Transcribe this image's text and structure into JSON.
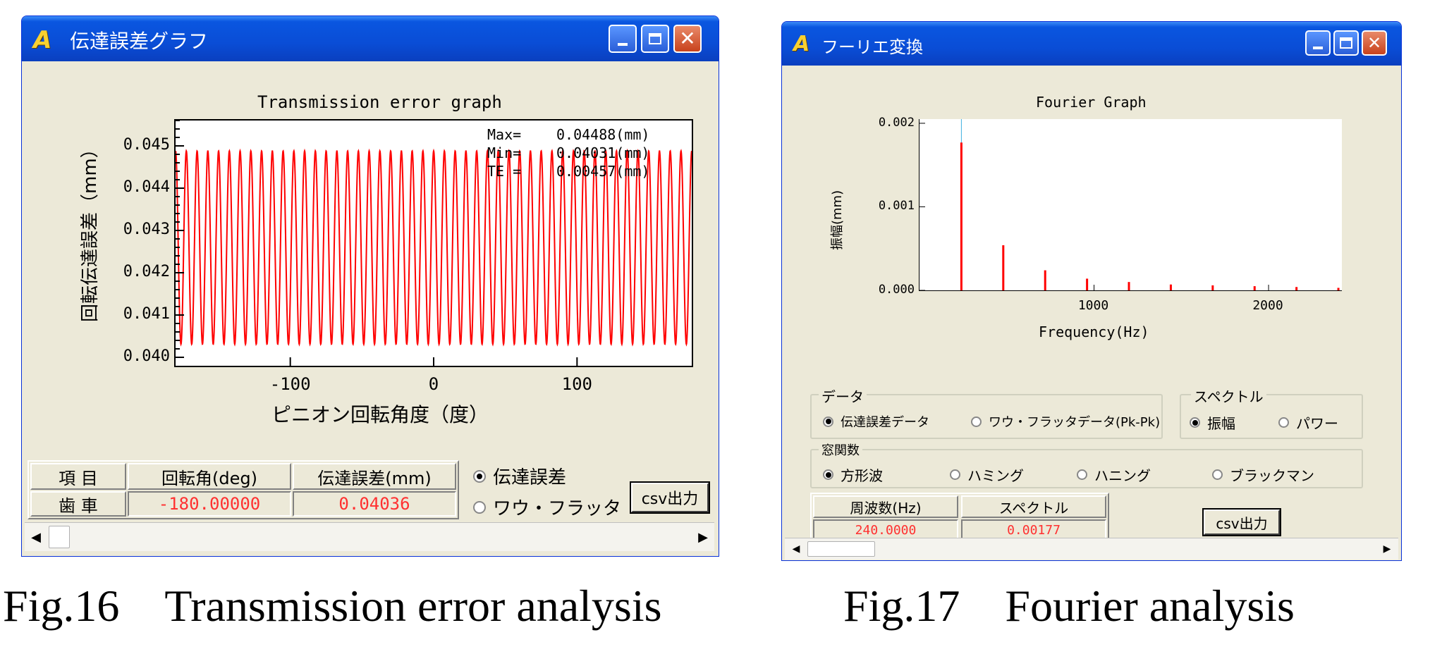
{
  "window1": {
    "title": "伝達誤差グラフ",
    "logo": "A",
    "chart_data": {
      "type": "line",
      "title": "Transmission error graph",
      "xlabel": "ピニオン回転角度（度）",
      "ylabel": "回転伝達誤差（mm）",
      "xlim": [
        -180,
        180
      ],
      "ylim": [
        0.0398,
        0.0456
      ],
      "xticks": [
        -100,
        0,
        100
      ],
      "xtick_labels": [
        "-100",
        "0",
        "100"
      ],
      "yticks": [
        0.04,
        0.041,
        0.042,
        0.043,
        0.044,
        0.045
      ],
      "ytick_labels": [
        "0.040",
        "0.041",
        "0.042",
        "0.043",
        "0.044",
        "0.045"
      ],
      "series": [
        {
          "color": "#ff0000",
          "periods": 48,
          "max": 0.04488,
          "min": 0.04031
        }
      ],
      "stats": [
        {
          "label": "Max=",
          "value": "0.04488(mm)"
        },
        {
          "label": "Min=",
          "value": "0.04031(mm)"
        },
        {
          "label": "TE =",
          "value": "0.00457(mm)"
        }
      ]
    },
    "table": {
      "headers": [
        "項 目",
        "回転角(deg)",
        "伝達誤差(mm)"
      ],
      "row_label": "歯 車",
      "values": [
        "-180.00000",
        "0.04036"
      ]
    },
    "radios": [
      {
        "label": "伝達誤差",
        "checked": true
      },
      {
        "label": "ワウ・フラッタ",
        "checked": false
      }
    ],
    "csv_button": "csv出力"
  },
  "window2": {
    "title": "フーリエ変換",
    "logo": "A",
    "chart_data": {
      "type": "bar",
      "title": "Fourier Graph",
      "xlabel": "Frequency(Hz)",
      "ylabel": "振幅(mm)",
      "xlim": [
        0,
        2420
      ],
      "ylim": [
        0,
        0.00205
      ],
      "xticks": [
        1000,
        2000
      ],
      "xtick_labels": [
        "1000",
        "2000"
      ],
      "yticks": [
        0,
        0.001,
        0.002
      ],
      "ytick_labels": [
        "0.000",
        "0.001",
        "0.002"
      ],
      "marker_x": 240,
      "x": [
        240,
        480,
        720,
        960,
        1200,
        1440,
        1680,
        1920,
        2160,
        2400
      ],
      "values": [
        0.00177,
        0.00054,
        0.00024,
        0.00014,
        0.0001,
        7e-05,
        6e-05,
        5e-05,
        4e-05,
        3e-05
      ]
    },
    "data_group": {
      "label": "データ",
      "options": [
        {
          "label": "伝達誤差データ",
          "checked": true
        },
        {
          "label": "ワウ・フラッタデータ(Pk-Pk)",
          "checked": false
        }
      ]
    },
    "spectrum_group": {
      "label": "スペクトル",
      "options": [
        {
          "label": "振幅",
          "checked": true
        },
        {
          "label": "パワー",
          "checked": false
        }
      ]
    },
    "window_group": {
      "label": "窓関数",
      "options": [
        {
          "label": "方形波",
          "checked": true
        },
        {
          "label": "ハミング",
          "checked": false
        },
        {
          "label": "ハニング",
          "checked": false
        },
        {
          "label": "ブラックマン",
          "checked": false
        }
      ]
    },
    "table": {
      "headers": [
        "周波数(Hz)",
        "スペクトル"
      ],
      "values": [
        "240.0000",
        "0.00177"
      ]
    },
    "csv_button": "csv出力"
  },
  "captions": {
    "fig16": "Fig.16　Transmission error analysis",
    "fig17": "Fig.17　Fourier analysis"
  }
}
